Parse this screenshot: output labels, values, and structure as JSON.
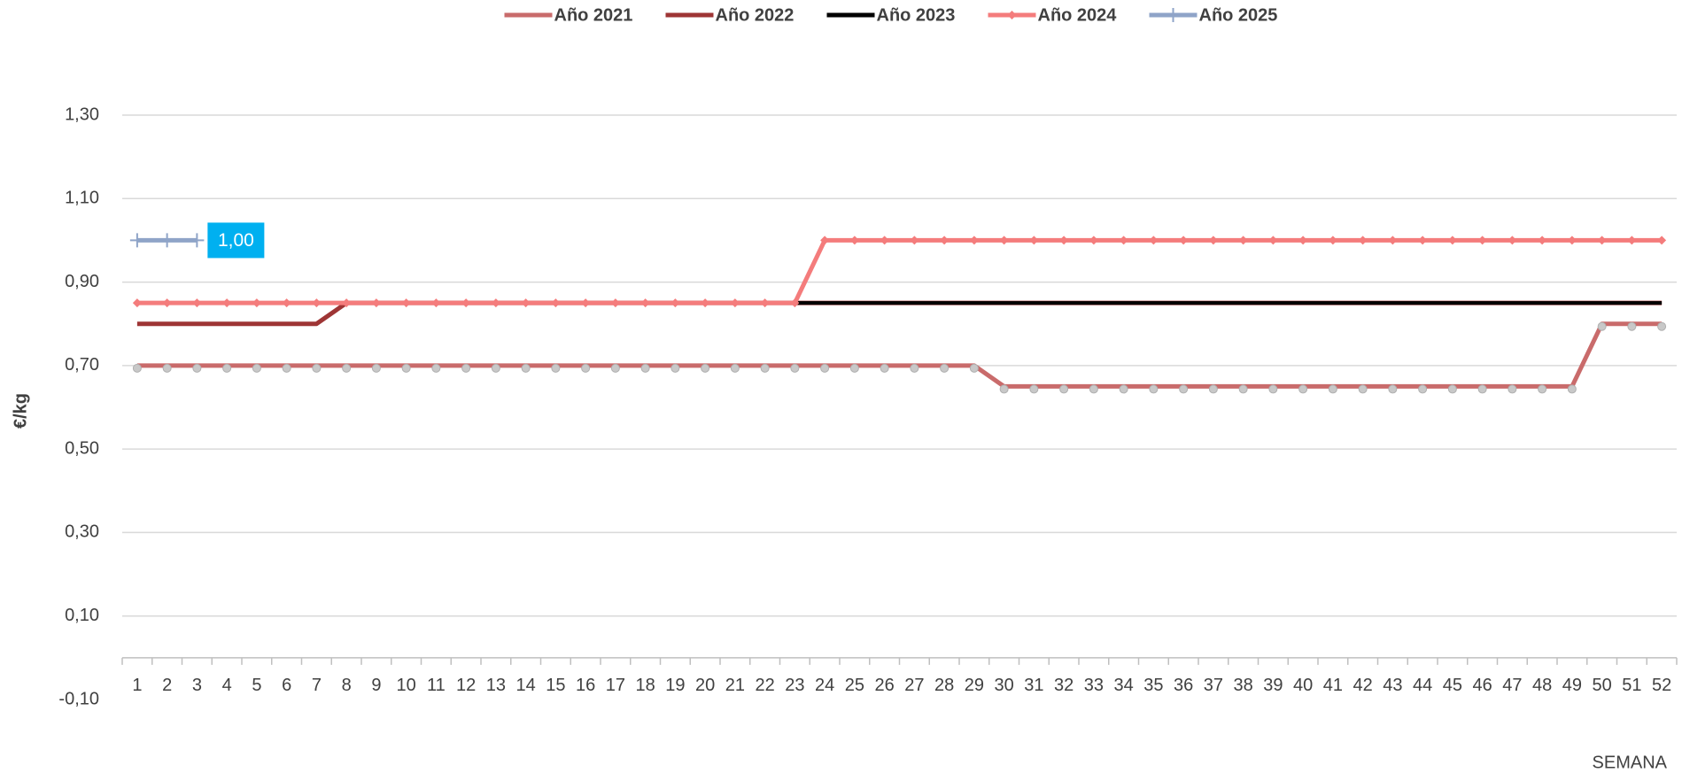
{
  "chart_data": {
    "type": "line",
    "y_label": "€/kg",
    "x_label": "SEMANA",
    "categories": [
      1,
      2,
      3,
      4,
      5,
      6,
      7,
      8,
      9,
      10,
      11,
      12,
      13,
      14,
      15,
      16,
      17,
      18,
      19,
      20,
      21,
      22,
      23,
      24,
      25,
      26,
      27,
      28,
      29,
      30,
      31,
      32,
      33,
      34,
      35,
      36,
      37,
      38,
      39,
      40,
      41,
      42,
      43,
      44,
      45,
      46,
      47,
      48,
      49,
      50,
      51,
      52
    ],
    "ylim": [
      -0.1,
      1.3
    ],
    "yticks": [
      {
        "value": -0.1,
        "label": "-0,10"
      },
      {
        "value": 0.1,
        "label": "0,10"
      },
      {
        "value": 0.3,
        "label": "0,30"
      },
      {
        "value": 0.5,
        "label": "0,50"
      },
      {
        "value": 0.7,
        "label": "0,70"
      },
      {
        "value": 0.9,
        "label": "0,90"
      },
      {
        "value": 1.1,
        "label": "1,10"
      },
      {
        "value": 1.3,
        "label": "1,30"
      }
    ],
    "grid": true,
    "legend": "top",
    "series": [
      {
        "name": "Año 2021",
        "color": "#c96b6b",
        "marker": "circle",
        "values": [
          0.7,
          0.7,
          0.7,
          0.7,
          0.7,
          0.7,
          0.7,
          0.7,
          0.7,
          0.7,
          0.7,
          0.7,
          0.7,
          0.7,
          0.7,
          0.7,
          0.7,
          0.7,
          0.7,
          0.7,
          0.7,
          0.7,
          0.7,
          0.7,
          0.7,
          0.7,
          0.7,
          0.7,
          0.7,
          0.65,
          0.65,
          0.65,
          0.65,
          0.65,
          0.65,
          0.65,
          0.65,
          0.65,
          0.65,
          0.65,
          0.65,
          0.65,
          0.65,
          0.65,
          0.65,
          0.65,
          0.65,
          0.65,
          0.65,
          0.8,
          0.8,
          0.8
        ]
      },
      {
        "name": "Año 2022",
        "color": "#9e3535",
        "marker": "none",
        "values": [
          0.8,
          0.8,
          0.8,
          0.8,
          0.8,
          0.8,
          0.8,
          0.85,
          0.85,
          0.85,
          0.85,
          0.85,
          0.85,
          0.85,
          0.85,
          0.85,
          0.85,
          0.85,
          0.85,
          0.85,
          0.85,
          0.85,
          0.85,
          0.85,
          0.85,
          0.85,
          0.85,
          0.85,
          0.85,
          0.85,
          0.85,
          0.85,
          0.85,
          0.85,
          0.85,
          0.85,
          0.85,
          0.85,
          0.85,
          0.85,
          0.85,
          0.85,
          0.85,
          0.85,
          0.85,
          0.85,
          0.85,
          0.85,
          0.85,
          0.85,
          0.85,
          0.85
        ]
      },
      {
        "name": "Año 2023",
        "color": "#000000",
        "marker": "none",
        "values": [
          0.85,
          0.85,
          0.85,
          0.85,
          0.85,
          0.85,
          0.85,
          0.85,
          0.85,
          0.85,
          0.85,
          0.85,
          0.85,
          0.85,
          0.85,
          0.85,
          0.85,
          0.85,
          0.85,
          0.85,
          0.85,
          0.85,
          0.85,
          0.85,
          0.85,
          0.85,
          0.85,
          0.85,
          0.85,
          0.85,
          0.85,
          0.85,
          0.85,
          0.85,
          0.85,
          0.85,
          0.85,
          0.85,
          0.85,
          0.85,
          0.85,
          0.85,
          0.85,
          0.85,
          0.85,
          0.85,
          0.85,
          0.85,
          0.85,
          0.85,
          0.85,
          0.85
        ]
      },
      {
        "name": "Año 2024",
        "color": "#f47c7c",
        "marker": "diamond",
        "values": [
          0.85,
          0.85,
          0.85,
          0.85,
          0.85,
          0.85,
          0.85,
          0.85,
          0.85,
          0.85,
          0.85,
          0.85,
          0.85,
          0.85,
          0.85,
          0.85,
          0.85,
          0.85,
          0.85,
          0.85,
          0.85,
          0.85,
          0.85,
          1.0,
          1.0,
          1.0,
          1.0,
          1.0,
          1.0,
          1.0,
          1.0,
          1.0,
          1.0,
          1.0,
          1.0,
          1.0,
          1.0,
          1.0,
          1.0,
          1.0,
          1.0,
          1.0,
          1.0,
          1.0,
          1.0,
          1.0,
          1.0,
          1.0,
          1.0,
          1.0,
          1.0,
          1.0
        ]
      },
      {
        "name": "Año 2025",
        "color": "#8fa4c8",
        "marker": "plus",
        "values": [
          1.0,
          1.0,
          1.0,
          null,
          null,
          null,
          null,
          null,
          null,
          null,
          null,
          null,
          null,
          null,
          null,
          null,
          null,
          null,
          null,
          null,
          null,
          null,
          null,
          null,
          null,
          null,
          null,
          null,
          null,
          null,
          null,
          null,
          null,
          null,
          null,
          null,
          null,
          null,
          null,
          null,
          null,
          null,
          null,
          null,
          null,
          null,
          null,
          null,
          null,
          null,
          null,
          null
        ],
        "value_labels": [
          null,
          null,
          "1,00",
          null,
          null,
          null,
          null,
          null,
          null,
          null,
          null,
          null,
          null,
          null,
          null,
          null,
          null,
          null,
          null,
          null,
          null,
          null,
          null,
          null,
          null,
          null,
          null,
          null,
          null,
          null,
          null,
          null,
          null,
          null,
          null,
          null,
          null,
          null,
          null,
          null,
          null,
          null,
          null,
          null,
          null,
          null,
          null,
          null,
          null,
          null,
          null,
          null
        ]
      }
    ]
  }
}
